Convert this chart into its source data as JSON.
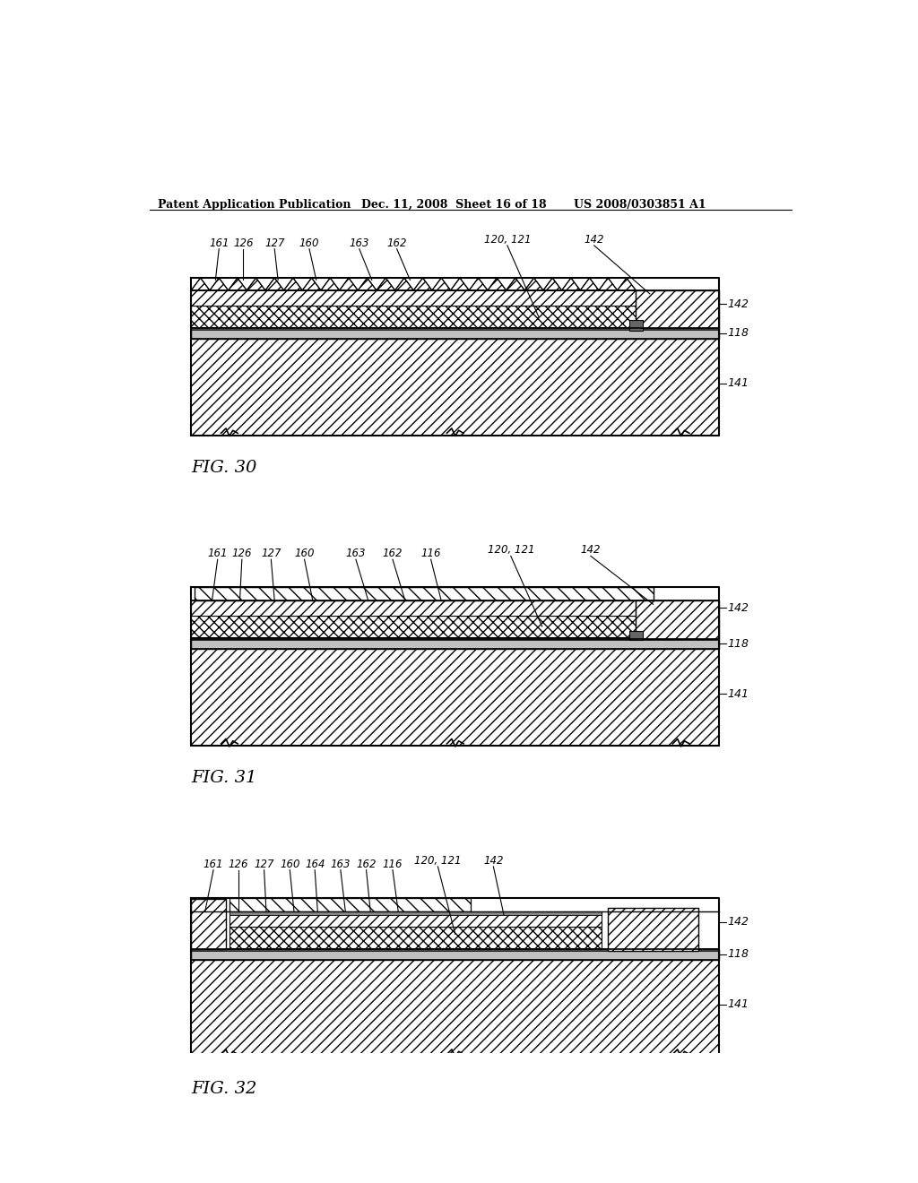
{
  "header_left": "Patent Application Publication",
  "header_mid": "Dec. 11, 2008  Sheet 16 of 18",
  "header_right": "US 2008/0303851 A1",
  "fig30_label": "FIG. 30",
  "fig31_label": "FIG. 31",
  "fig32_label": "FIG. 32",
  "bg_color": "#ffffff",
  "line_color": "#000000"
}
